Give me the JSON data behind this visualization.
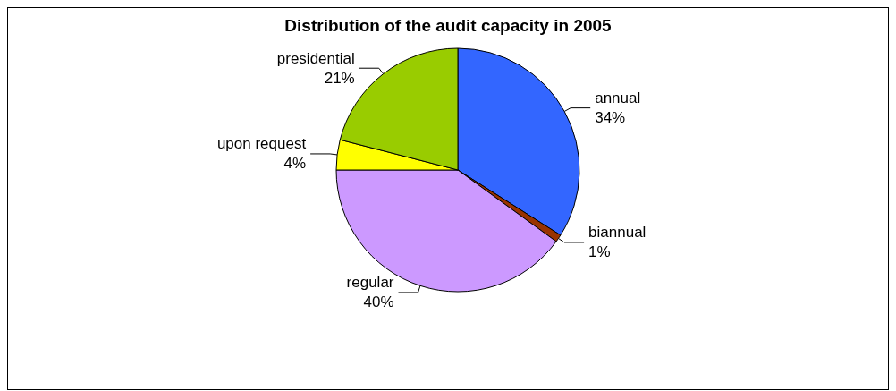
{
  "chart_data": {
    "type": "pie",
    "title": "Distribution of the audit capacity in 2005",
    "categories": [
      "annual",
      "biannual",
      "regular",
      "upon request",
      "presidential"
    ],
    "values": [
      34,
      1,
      40,
      4,
      21
    ],
    "value_labels": [
      "34%",
      "1%",
      "40%",
      "4%",
      "21%"
    ],
    "colors": [
      "#3366ff",
      "#993300",
      "#cc99ff",
      "#ffff00",
      "#99cc00"
    ],
    "legend": false
  }
}
